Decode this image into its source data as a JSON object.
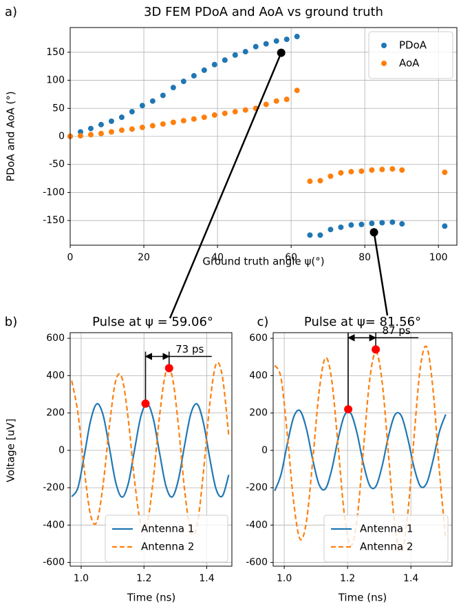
{
  "chart_data": [
    {
      "type": "scatter",
      "panel_label": "a)",
      "title": "3D FEM PDoA and AoA vs ground truth",
      "xlabel": "Ground truth angle ψ(°)",
      "ylabel": "PDoA and AoA (°)",
      "x": [
        0,
        2.8,
        5.6,
        8.4,
        11.2,
        14.0,
        16.8,
        19.6,
        22.4,
        25.2,
        28.0,
        30.8,
        33.6,
        36.4,
        39.2,
        42.0,
        44.8,
        47.6,
        50.4,
        53.2,
        56.0,
        58.8,
        61.6,
        65.1,
        67.9,
        70.7,
        73.5,
        76.3,
        79.1,
        81.9,
        84.7,
        87.5,
        90.1,
        101.7
      ],
      "series": [
        {
          "name": "PDoA",
          "color": "#1f77b4",
          "values": [
            0,
            8,
            14,
            21,
            27,
            34,
            44,
            55,
            63,
            73,
            87,
            98,
            108,
            118,
            128,
            136,
            145,
            151,
            160,
            165,
            170,
            173,
            178,
            -176,
            -176,
            -166,
            -162,
            -158,
            -157,
            -155,
            -154,
            -153,
            -156,
            -160
          ]
        },
        {
          "name": "AoA",
          "color": "#ff7f0e",
          "values": [
            0,
            1,
            3,
            5,
            8,
            11,
            13,
            16,
            19,
            22,
            25,
            28,
            31,
            34,
            38,
            41,
            44,
            47,
            50,
            57,
            63,
            66,
            82,
            -80,
            -79,
            -71,
            -65,
            -63,
            -62,
            -60,
            -59,
            -58,
            -60,
            -64
          ]
        }
      ],
      "highlight": {
        "color": "#000000",
        "x": [
          57.3,
          82.5
        ],
        "values": [
          149,
          -171
        ]
      },
      "xlim": [
        0,
        105
      ],
      "ylim": [
        -194,
        194
      ],
      "xticks": [
        0,
        20,
        40,
        60,
        80,
        100
      ],
      "yticks": [
        -150,
        -100,
        -50,
        0,
        50,
        100,
        150
      ],
      "grid": true,
      "legend": "upper right"
    },
    {
      "type": "line",
      "panel_label": "b)",
      "title": "Pulse at ψ = 59.06°",
      "xlabel": "Time (ns)",
      "ylabel": "Voltage [uV]",
      "x": [
        0.97,
        0.99,
        1.01,
        1.03,
        1.05,
        1.07,
        1.09,
        1.11,
        1.13,
        1.15,
        1.17,
        1.19,
        1.21,
        1.23,
        1.25,
        1.27,
        1.29,
        1.31,
        1.33,
        1.35,
        1.37,
        1.39,
        1.41,
        1.43,
        1.45,
        1.47
      ],
      "series": [
        {
          "name": "Antenna 1",
          "color": "#1f77b4",
          "linestyle": "solid",
          "values": [
            -248,
            -198,
            -27,
            159,
            249,
            188,
            13,
            -171,
            -250,
            -178,
            3,
            181,
            250,
            167,
            -17,
            -191,
            -249,
            -155,
            33,
            200,
            247,
            143,
            -47,
            -209,
            -244,
            -131
          ]
        },
        {
          "name": "Antenna 2",
          "color": "#ff7f0e",
          "linestyle": "dashed",
          "values": [
            373,
            196,
            -105,
            -347,
            -382,
            -182,
            132,
            372,
            388,
            167,
            -161,
            -395,
            -393,
            -149,
            190,
            419,
            395,
            128,
            -221,
            -441,
            -394,
            -106,
            253,
            463,
            393,
            80
          ]
        }
      ],
      "points": {
        "color": "#ff0000",
        "x": [
          1.205,
          1.28
        ],
        "values": [
          250,
          440
        ]
      },
      "annotation": "73 ps",
      "xlim": [
        0.965,
        1.48
      ],
      "ylim": [
        -620,
        630
      ],
      "xticks": [
        {
          "value": 1,
          "label": "1.0"
        },
        1.2,
        1.4
      ],
      "yticks": [
        -600,
        -400,
        -200,
        0,
        200,
        400,
        600
      ],
      "grid": true,
      "legend": "lower right"
    },
    {
      "type": "line",
      "panel_label": "c)",
      "title": "Pulse at ψ= 81.56°",
      "xlabel": "Time (ns)",
      "x": [
        0.97,
        0.99,
        1.01,
        1.03,
        1.05,
        1.07,
        1.09,
        1.11,
        1.13,
        1.15,
        1.17,
        1.19,
        1.21,
        1.23,
        1.25,
        1.27,
        1.29,
        1.31,
        1.33,
        1.35,
        1.37,
        1.39,
        1.41,
        1.43,
        1.45,
        1.47,
        1.49,
        1.51
      ],
      "series": [
        {
          "name": "Antenna 1",
          "color": "#1f77b4",
          "linestyle": "solid",
          "values": [
            -217,
            -128,
            37,
            179,
            212,
            116,
            -49,
            -183,
            -206,
            -103,
            60,
            186,
            199,
            91,
            -72,
            -189,
            -191,
            -78,
            82,
            191,
            184,
            65,
            -91,
            -192,
            -175,
            -53,
            100,
            192
          ]
        },
        {
          "name": "Antenna 2",
          "color": "#ff7f0e",
          "linestyle": "dashed",
          "values": [
            455,
            386,
            79,
            -280,
            -475,
            -382,
            -54,
            313,
            495,
            376,
            25,
            -346,
            -512,
            -367,
            5,
            379,
            527,
            354,
            -38,
            -413,
            -541,
            -340,
            72,
            446,
            553,
            324,
            -107,
            -479
          ]
        }
      ],
      "points": {
        "color": "#ff0000",
        "x": [
          1.202,
          1.289
        ],
        "values": [
          220,
          540
        ]
      },
      "annotation": "87 ps",
      "xlim": [
        0.965,
        1.53
      ],
      "ylim": [
        -620,
        630
      ],
      "xticks": [
        {
          "value": 1,
          "label": "1.0"
        },
        1.2,
        1.4
      ],
      "yticks": [
        -600,
        -400,
        -200,
        0,
        200,
        400,
        600
      ],
      "grid": true,
      "legend": "lower right"
    }
  ]
}
